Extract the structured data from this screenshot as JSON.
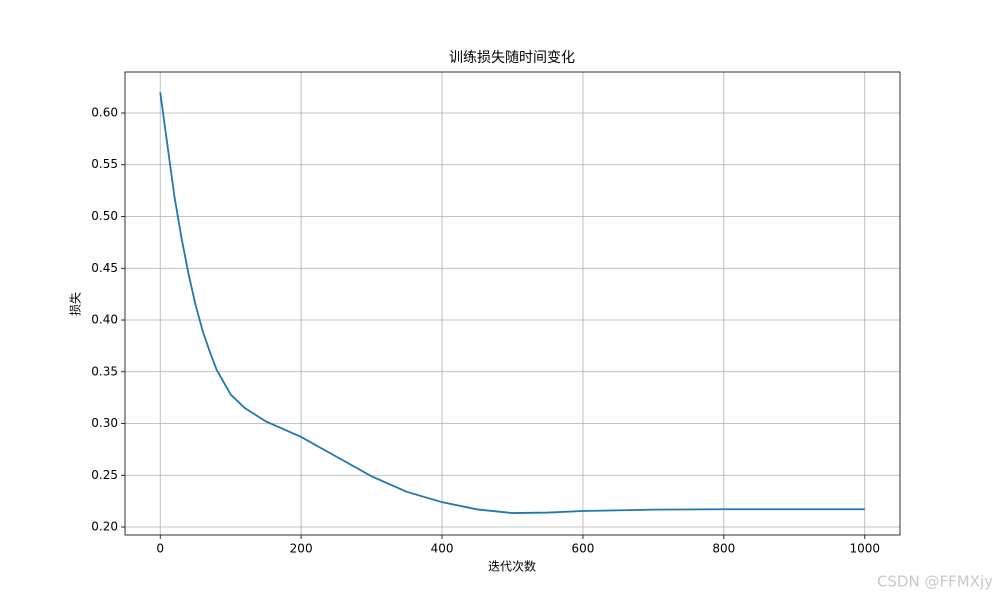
{
  "chart_data": {
    "type": "line",
    "title": "训练损失随时间变化",
    "xlabel": "迭代次数",
    "ylabel": "损失",
    "x": [
      0,
      10,
      20,
      30,
      40,
      50,
      60,
      70,
      80,
      100,
      120,
      150,
      200,
      250,
      300,
      350,
      400,
      450,
      500,
      550,
      600,
      700,
      800,
      900,
      1000
    ],
    "series": [
      {
        "name": "损失",
        "color": "#1f77b4",
        "values": [
          0.62,
          0.57,
          0.52,
          0.48,
          0.445,
          0.415,
          0.39,
          0.37,
          0.352,
          0.328,
          0.315,
          0.302,
          0.287,
          0.268,
          0.249,
          0.234,
          0.224,
          0.217,
          0.2135,
          0.214,
          0.2155,
          0.2168,
          0.2172,
          0.2172,
          0.2172
        ]
      }
    ],
    "xlim": [
      -50,
      1050
    ],
    "ylim": [
      0.1923,
      0.6396
    ],
    "xticks": [
      0,
      200,
      400,
      600,
      800,
      1000
    ],
    "yticks": [
      {
        "value": 0.2,
        "label": "0.20"
      },
      0.25,
      {
        "value": 0.3,
        "label": "0.30"
      },
      0.35,
      {
        "value": 0.4,
        "label": "0.40"
      },
      0.45,
      {
        "value": 0.5,
        "label": "0.50"
      },
      0.55,
      {
        "value": 0.6,
        "label": "0.60"
      }
    ],
    "grid": true,
    "watermark": "CSDN @FFMXjy"
  }
}
